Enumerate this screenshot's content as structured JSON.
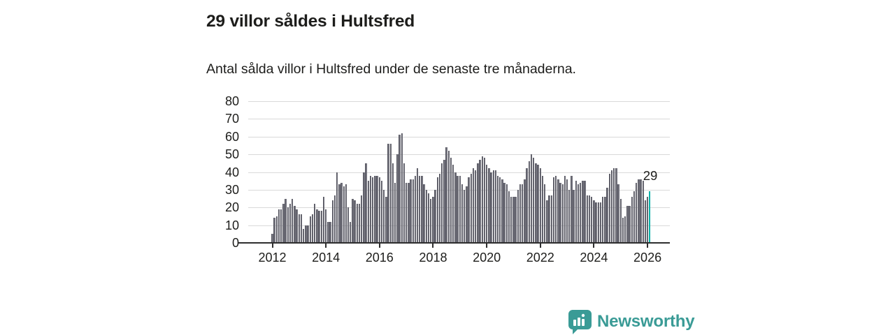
{
  "header": {
    "title": "29 villor såldes i Hultsfred",
    "subtitle": "Antal sålda villor i Hultsfred under de senaste tre månaderna."
  },
  "annotation": {
    "last_value_label": "29"
  },
  "branding": {
    "wordmark": "Newsworthy",
    "logo_icon": "bar-chart-speech-bubble-icon"
  },
  "colors": {
    "bar": "#73737d",
    "bar_edge": "#53535d",
    "highlight": "#0cb2a9",
    "gridline": "#d9d9d9",
    "axis": "#2e2e2e",
    "text": "#1d1d1b",
    "brand_teal": "#3a9b96"
  },
  "chart_data": {
    "type": "bar",
    "title": "29 villor såldes i Hultsfred",
    "subtitle": "Antal sålda villor i Hultsfred under de senaste tre månaderna.",
    "xlabel": "",
    "ylabel": "",
    "x_start": "2012-01",
    "x_frequency": "monthly",
    "x_tick_labels": [
      "2012",
      "2014",
      "2016",
      "2018",
      "2020",
      "2022",
      "2024",
      "2026"
    ],
    "y_ticks": [
      0,
      10,
      20,
      30,
      40,
      50,
      60,
      70,
      80
    ],
    "ylim": [
      0,
      80
    ],
    "grid": true,
    "legend": false,
    "values": [
      5,
      14,
      15,
      19,
      19,
      22,
      25,
      20,
      22,
      25,
      21,
      19,
      16,
      16,
      8,
      10,
      10,
      15,
      16,
      22,
      19,
      18,
      18,
      26,
      19,
      12,
      12,
      24,
      27,
      40,
      33,
      34,
      32,
      33,
      20,
      12,
      25,
      24,
      22,
      22,
      27,
      40,
      45,
      35,
      38,
      37,
      38,
      38,
      37,
      35,
      30,
      26,
      56,
      56,
      45,
      34,
      50,
      61,
      62,
      45,
      34,
      34,
      36,
      36,
      38,
      42,
      38,
      38,
      33,
      30,
      28,
      25,
      26,
      30,
      37,
      39,
      45,
      47,
      54,
      52,
      48,
      44,
      40,
      38,
      38,
      33,
      30,
      32,
      37,
      39,
      42,
      41,
      45,
      47,
      49,
      48,
      44,
      42,
      40,
      41,
      41,
      38,
      37,
      36,
      34,
      33,
      29,
      26,
      26,
      26,
      30,
      33,
      33,
      36,
      42,
      46,
      50,
      48,
      45,
      44,
      42,
      38,
      33,
      24,
      27,
      27,
      37,
      38,
      36,
      34,
      33,
      38,
      36,
      30,
      38,
      30,
      35,
      33,
      34,
      35,
      35,
      27,
      27,
      26,
      24,
      23,
      23,
      23,
      26,
      26,
      31,
      39,
      41,
      42,
      42,
      33,
      25,
      14,
      15,
      21,
      21,
      26,
      29,
      34,
      36,
      36,
      35,
      24,
      26,
      29
    ],
    "highlight_last": true,
    "highlight_value": 29
  }
}
